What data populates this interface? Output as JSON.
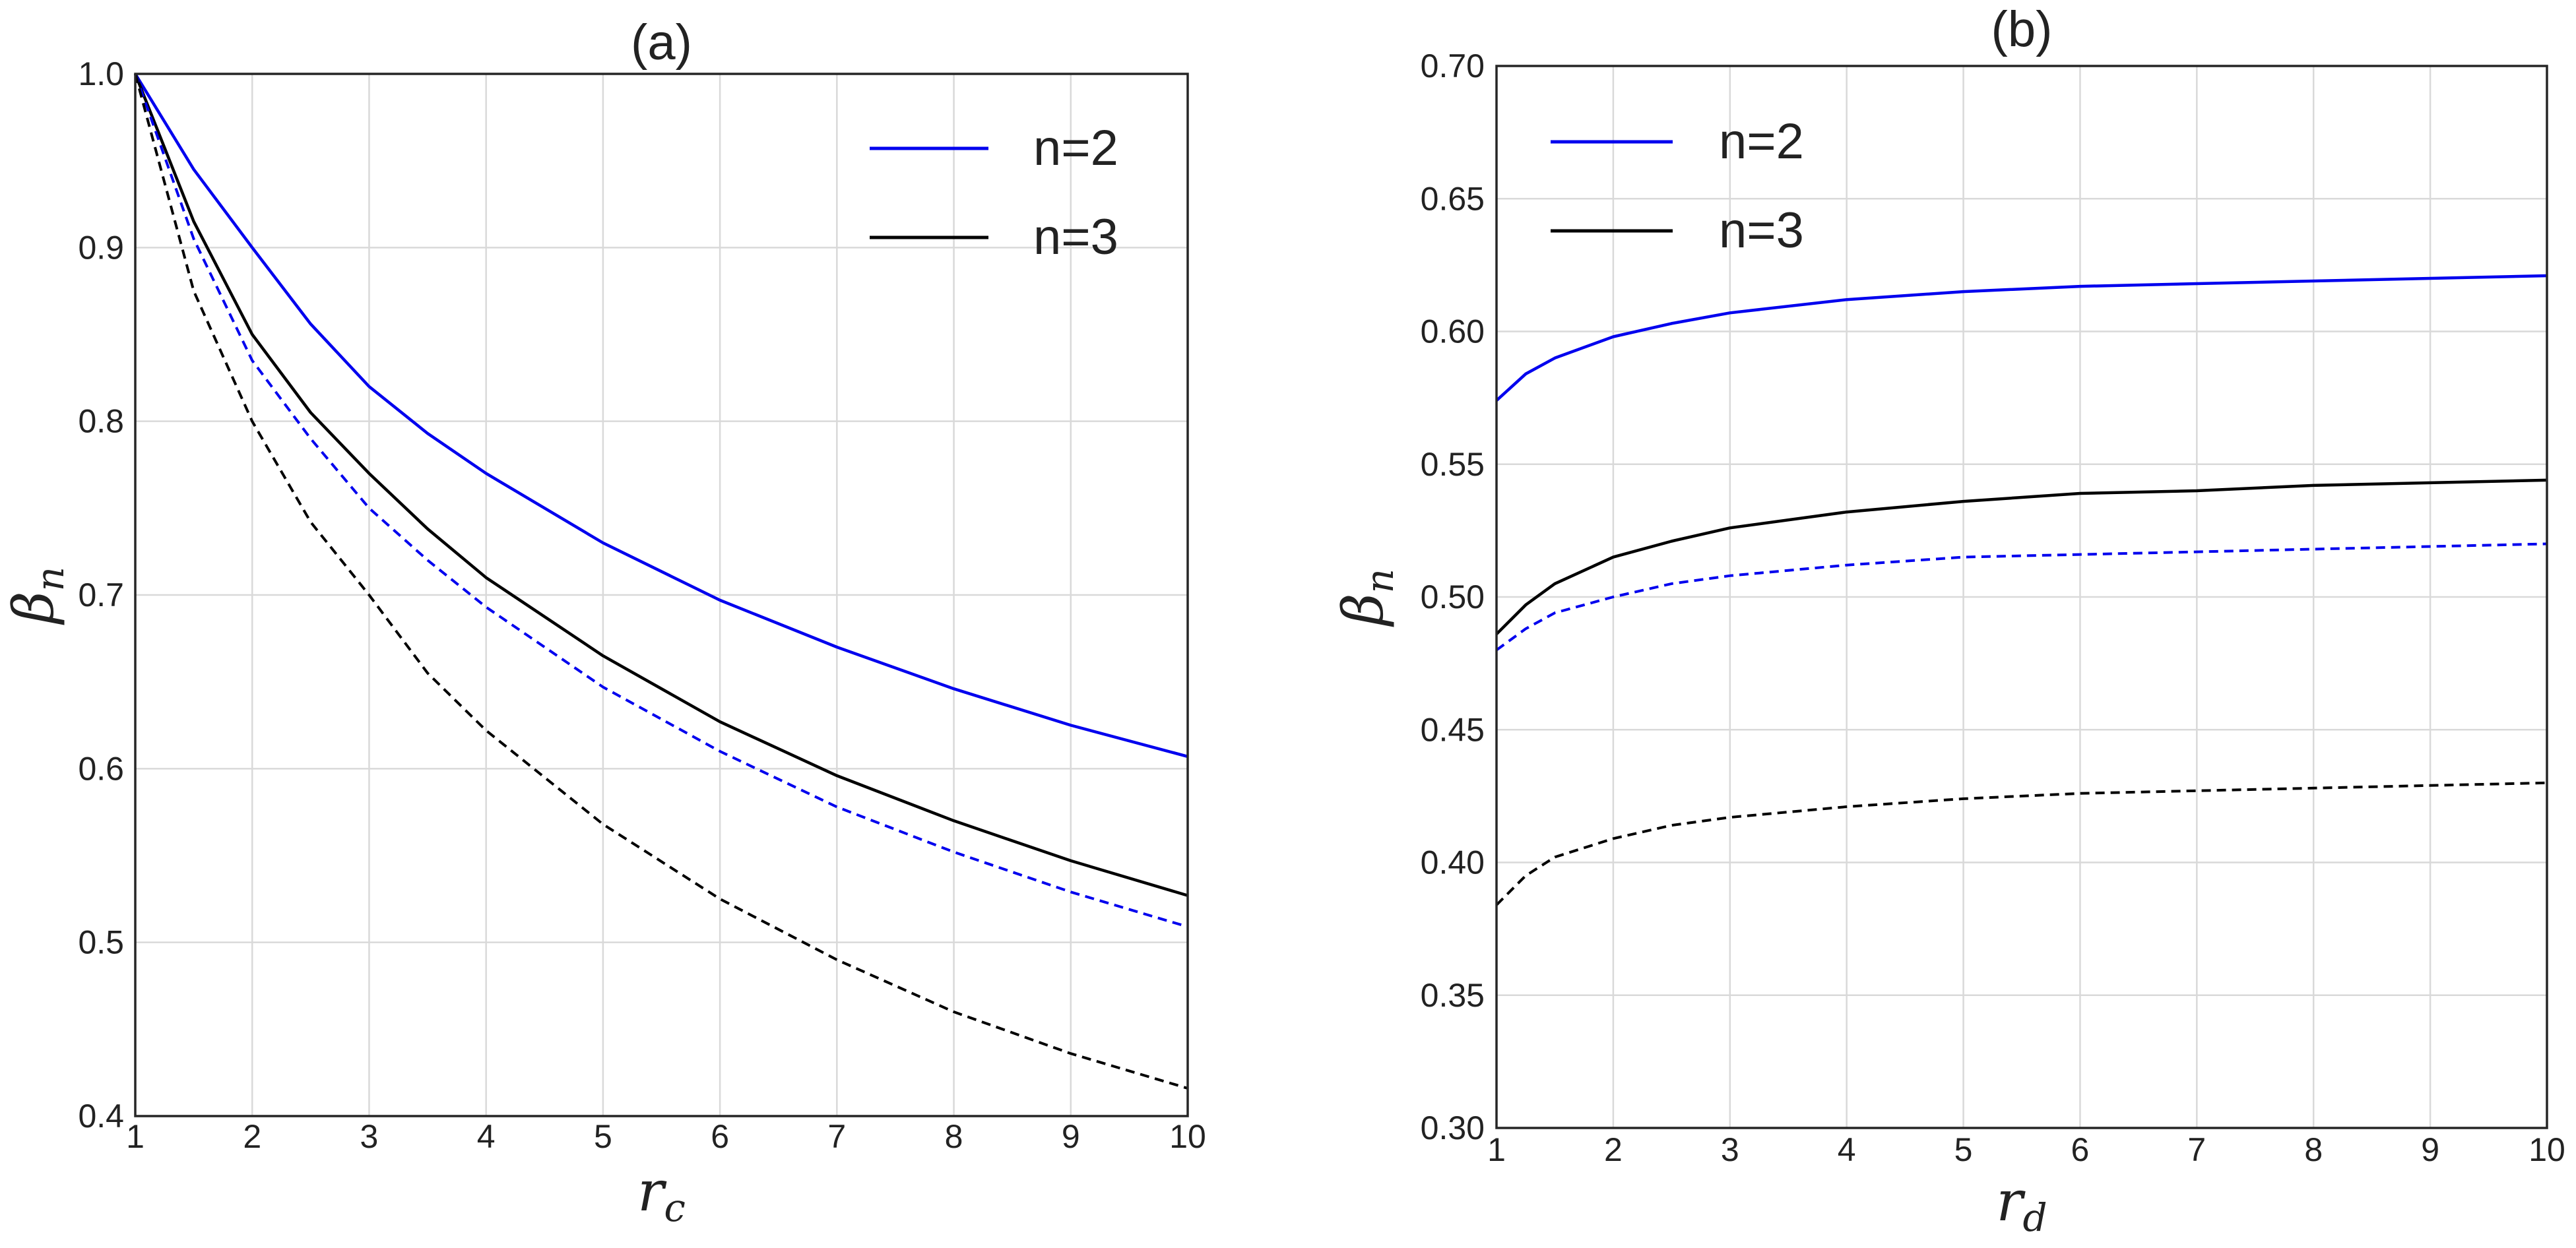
{
  "chart_data": [
    {
      "type": "line",
      "title": "(a)",
      "xlabel": "r_c",
      "xlabel_main": "r",
      "xlabel_sub": "c",
      "ylabel": "β_n",
      "ylabel_main": "β",
      "ylabel_sub": "n",
      "xlim": [
        1,
        10
      ],
      "ylim": [
        0.4,
        1.0
      ],
      "xticks": [
        1,
        2,
        3,
        4,
        5,
        6,
        7,
        8,
        9,
        10
      ],
      "xtick_labels": [
        "1",
        "2",
        "3",
        "4",
        "5",
        "6",
        "7",
        "8",
        "9",
        "10"
      ],
      "yticks": [
        0.4,
        0.5,
        0.6,
        0.7,
        0.8,
        0.9,
        1.0
      ],
      "ytick_labels": [
        "0.4",
        "0.5",
        "0.6",
        "0.7",
        "0.8",
        "0.9",
        "1.0"
      ],
      "grid": true,
      "legend": {
        "position": "top-right",
        "entries": [
          {
            "label": "n=2",
            "color": "#0000ee"
          },
          {
            "label": "n=3",
            "color": "#000000"
          }
        ]
      },
      "x": [
        1,
        1.5,
        2,
        2.5,
        3,
        3.5,
        4,
        5,
        6,
        7,
        8,
        9,
        10
      ],
      "series": [
        {
          "name": "n=2",
          "style": "solid",
          "color": "#0000ee",
          "values": [
            1.0,
            0.945,
            0.9,
            0.856,
            0.82,
            0.793,
            0.77,
            0.73,
            0.697,
            0.67,
            0.646,
            0.625,
            0.607
          ]
        },
        {
          "name": "n=3",
          "style": "solid",
          "color": "#000000",
          "values": [
            1.0,
            0.915,
            0.85,
            0.805,
            0.77,
            0.738,
            0.71,
            0.665,
            0.627,
            0.596,
            0.57,
            0.547,
            0.527
          ]
        },
        {
          "name": "n=2 (dashed)",
          "style": "dashed",
          "color": "#0000ee",
          "values": [
            1.0,
            0.905,
            0.835,
            0.79,
            0.75,
            0.72,
            0.693,
            0.647,
            0.61,
            0.578,
            0.552,
            0.529,
            0.509
          ]
        },
        {
          "name": "n=3 (dashed)",
          "style": "dashed",
          "color": "#000000",
          "values": [
            1.0,
            0.875,
            0.8,
            0.742,
            0.7,
            0.655,
            0.622,
            0.568,
            0.525,
            0.49,
            0.46,
            0.436,
            0.416
          ]
        }
      ]
    },
    {
      "type": "line",
      "title": "(b)",
      "xlabel": "r_d",
      "xlabel_main": "r",
      "xlabel_sub": "d",
      "ylabel": "β_n",
      "ylabel_main": "β",
      "ylabel_sub": "n",
      "xlim": [
        1,
        10
      ],
      "ylim": [
        0.3,
        0.7
      ],
      "xticks": [
        1,
        2,
        3,
        4,
        5,
        6,
        7,
        8,
        9,
        10
      ],
      "xtick_labels": [
        "1",
        "2",
        "3",
        "4",
        "5",
        "6",
        "7",
        "8",
        "9",
        "10"
      ],
      "yticks": [
        0.3,
        0.35,
        0.4,
        0.45,
        0.5,
        0.55,
        0.6,
        0.65,
        0.7
      ],
      "ytick_labels": [
        "0.30",
        "0.35",
        "0.40",
        "0.45",
        "0.50",
        "0.55",
        "0.60",
        "0.65",
        "0.70"
      ],
      "grid": true,
      "legend": {
        "position": "top-left",
        "entries": [
          {
            "label": "n=2",
            "color": "#0000ee"
          },
          {
            "label": "n=3",
            "color": "#000000"
          }
        ]
      },
      "x": [
        1,
        1.25,
        1.5,
        2,
        2.5,
        3,
        4,
        5,
        6,
        7,
        8,
        9,
        10
      ],
      "series": [
        {
          "name": "n=2",
          "style": "solid",
          "color": "#0000ee",
          "values": [
            0.574,
            0.584,
            0.59,
            0.598,
            0.603,
            0.607,
            0.612,
            0.615,
            0.617,
            0.618,
            0.619,
            0.62,
            0.621
          ]
        },
        {
          "name": "n=3",
          "style": "solid",
          "color": "#000000",
          "values": [
            0.486,
            0.497,
            0.505,
            0.515,
            0.521,
            0.526,
            0.532,
            0.536,
            0.539,
            0.54,
            0.542,
            0.543,
            0.544
          ]
        },
        {
          "name": "n=2 (dashed)",
          "style": "dashed",
          "color": "#0000ee",
          "values": [
            0.48,
            0.488,
            0.494,
            0.5,
            0.505,
            0.508,
            0.512,
            0.515,
            0.516,
            0.517,
            0.518,
            0.519,
            0.52
          ]
        },
        {
          "name": "n=3 (dashed)",
          "style": "dashed",
          "color": "#000000",
          "values": [
            0.384,
            0.395,
            0.402,
            0.409,
            0.414,
            0.417,
            0.421,
            0.424,
            0.426,
            0.427,
            0.428,
            0.429,
            0.43
          ]
        }
      ]
    }
  ]
}
